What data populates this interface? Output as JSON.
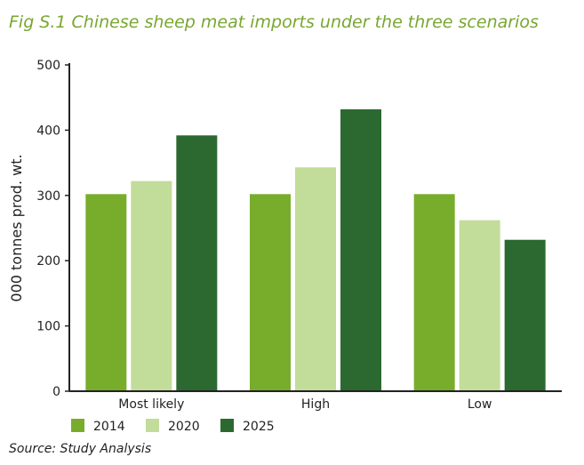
{
  "title": "Fig S.1 Chinese sheep meat imports under the three scenarios",
  "source": "Source: Study Analysis",
  "chart_data": {
    "type": "bar",
    "title": "Fig S.1 Chinese sheep meat imports under the three scenarios",
    "xlabel": "",
    "ylabel": "000 tonnes prod. wt.",
    "ylim": [
      0,
      500
    ],
    "yticks": [
      0,
      100,
      200,
      300,
      400,
      500
    ],
    "categories": [
      "Most likely",
      "High",
      "Low"
    ],
    "series": [
      {
        "name": "2014",
        "values": [
          302,
          302,
          302
        ],
        "color": "#78ad2c"
      },
      {
        "name": "2020",
        "values": [
          322,
          343,
          262
        ],
        "color": "#c2dc9a"
      },
      {
        "name": "2025",
        "values": [
          392,
          432,
          232
        ],
        "color": "#2c6930"
      }
    ],
    "grid": false,
    "legend_position": "bottom-left"
  }
}
